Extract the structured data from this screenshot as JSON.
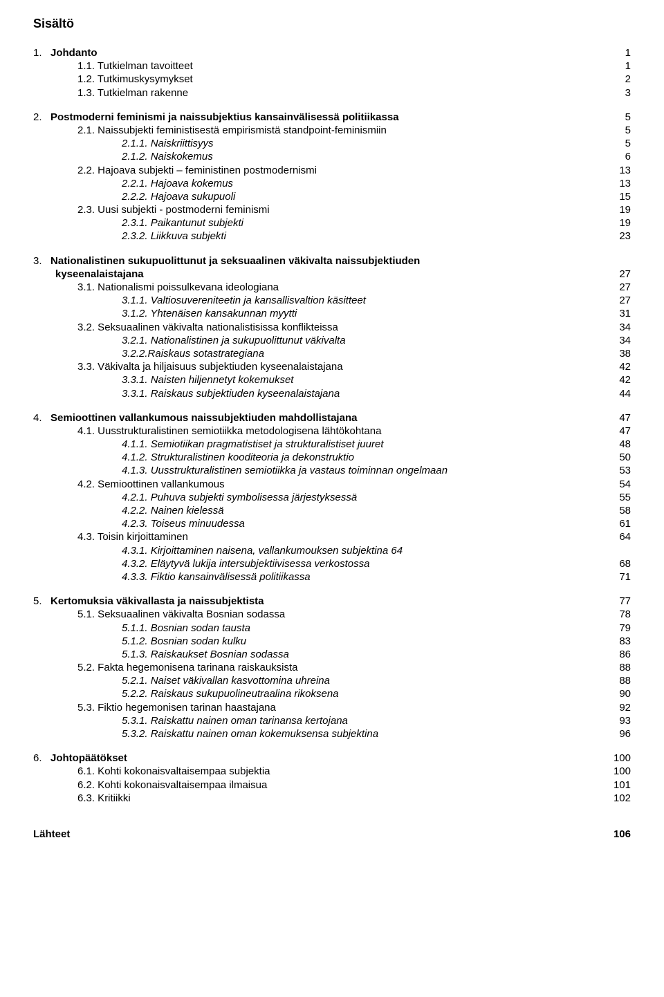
{
  "title": "Sisältö",
  "sources": {
    "label": "Lähteet",
    "page": "106"
  },
  "sections": [
    {
      "num": "1.",
      "title": "Johdanto",
      "page": "1",
      "children": [
        {
          "num": "1.1.",
          "title": "Tutkielman tavoitteet",
          "page": "1"
        },
        {
          "num": "1.2.",
          "title": "Tutkimuskysymykset",
          "page": "2"
        },
        {
          "num": "1.3.",
          "title": "Tutkielman rakenne",
          "page": "3"
        }
      ]
    },
    {
      "num": "2.",
      "title": "Postmoderni feminismi ja naissubjektius kansainvälisessä politiikassa",
      "page": "5",
      "children": [
        {
          "num": "2.1.",
          "title": "Naissubjekti feministisestä empirismistä standpoint-feminismiin",
          "page": "5",
          "children": [
            {
              "num": "2.1.1.",
              "title": "Naiskriittisyys",
              "page": "5",
              "italic": true
            },
            {
              "num": "2.1.2.",
              "title": "Naiskokemus",
              "page": "6",
              "italic": true
            }
          ]
        },
        {
          "num": "2.2.",
          "title": "Hajoava subjekti – feministinen postmodernismi",
          "page": "13",
          "children": [
            {
              "num": "2.2.1.",
              "title": "Hajoava kokemus",
              "page": "13",
              "italic": true
            },
            {
              "num": "2.2.2.",
              "title": "Hajoava sukupuoli",
              "page": "15",
              "italic": true
            }
          ]
        },
        {
          "num": "2.3.",
          "title": "Uusi subjekti - postmoderni feminismi",
          "page": "19",
          "children": [
            {
              "num": "2.3.1.",
              "title": "Paikantunut subjekti",
              "page": "19",
              "italic": true
            },
            {
              "num": "2.3.2.",
              "title": "Liikkuva subjekti",
              "page": "23",
              "italic": true
            }
          ]
        }
      ]
    },
    {
      "num": "3.",
      "title": "Nationalistinen sukupuolittunut ja seksuaalinen väkivalta naissubjektiuden kyseenalaistajana",
      "page": "27",
      "children": [
        {
          "num": "3.1.",
          "title": "Nationalismi poissulkevana ideologiana",
          "page": "27",
          "children": [
            {
              "num": "3.1.1.",
              "title": "Valtiosuvereniteetin ja kansallisvaltion käsitteet",
              "page": "27",
              "italic": true
            },
            {
              "num": "3.1.2.",
              "title": "Yhtenäisen kansakunnan myytti",
              "page": "31",
              "italic": true
            }
          ]
        },
        {
          "num": "3.2.",
          "title": "Seksuaalinen väkivalta nationalistisissa konflikteissa",
          "page": "34",
          "children": [
            {
              "num": "3.2.1.",
              "title": "Nationalistinen ja sukupuolittunut väkivalta",
              "page": "34",
              "italic": true
            },
            {
              "num": "3.2.2.",
              "title": "Raiskaus sotastrategiana",
              "page": "38",
              "italic": true,
              "nospace": true
            }
          ]
        },
        {
          "num": "3.3.",
          "title": "Väkivalta ja hiljaisuus subjektiuden kyseenalaistajana",
          "page": "42",
          "children": [
            {
              "num": "3.3.1.",
              "title": "Naisten hiljennetyt kokemukset",
              "page": "42",
              "italic": true
            },
            {
              "num": "3.3.1.",
              "title": "Raiskaus subjektiuden kyseenalaistajana",
              "page": "44",
              "italic": true
            }
          ]
        }
      ]
    },
    {
      "num": "4.",
      "title": "Semioottinen vallankumous naissubjektiuden mahdollistajana",
      "page": "47",
      "children": [
        {
          "num": "4.1.",
          "title": "Uusstrukturalistinen semiotiikka metodologisena lähtökohtana",
          "page": "47",
          "children": [
            {
              "num": "4.1.1.",
              "title": "Semiotiikan pragmatistiset ja strukturalistiset juuret",
              "page": "48",
              "italic": true
            },
            {
              "num": "4.1.2.",
              "title": "Strukturalistinen kooditeoria ja dekonstruktio",
              "page": "50",
              "italic": true
            },
            {
              "num": "4.1.3.",
              "title": "Uusstrukturalistinen semiotiikka ja vastaus toiminnan ongelmaan",
              "page": "53",
              "italic": true
            }
          ]
        },
        {
          "num": "4.2.",
          "title": "Semioottinen vallankumous",
          "page": "54",
          "children": [
            {
              "num": "4.2.1.",
              "title": "Puhuva subjekti symbolisessa järjestyksessä",
              "page": "55",
              "italic": true
            },
            {
              "num": "4.2.2.",
              "title": "Nainen kielessä",
              "page": "58",
              "italic": true
            },
            {
              "num": "4.2.3.",
              "title": "Toiseus minuudessa",
              "page": "61",
              "italic": true
            }
          ]
        },
        {
          "num": "4.3.",
          "title": "Toisin kirjoittaminen",
          "page": "64",
          "children": [
            {
              "num": "4.3.1.",
              "title": "Kirjoittaminen naisena, vallankumouksen subjektina",
              "page": "64",
              "italic": true,
              "inline_page": true
            },
            {
              "num": "4.3.2.",
              "title": "Eläytyvä lukija intersubjektiivisessa verkostossa",
              "page": "68",
              "italic": true
            },
            {
              "num": "4.3.3.",
              "title": "Fiktio kansainvälisessä politiikassa",
              "page": "71",
              "italic": true
            }
          ]
        }
      ]
    },
    {
      "num": "5.",
      "title": "Kertomuksia väkivallasta ja naissubjektista",
      "page": "77",
      "children": [
        {
          "num": "5.1.",
          "title": "Seksuaalinen väkivalta Bosnian sodassa",
          "page": "78",
          "children": [
            {
              "num": "5.1.1.",
              "title": "Bosnian sodan tausta",
              "page": "79",
              "italic": true
            },
            {
              "num": "5.1.2.",
              "title": "Bosnian sodan kulku",
              "page": "83",
              "italic": true
            },
            {
              "num": "5.1.3.",
              "title": "Raiskaukset Bosnian sodassa",
              "page": "86",
              "italic": true
            }
          ]
        },
        {
          "num": "5.2.",
          "title": "Fakta hegemonisena tarinana raiskauksista",
          "page": "88",
          "children": [
            {
              "num": "5.2.1.",
              "title": "Naiset väkivallan kasvottomina uhreina",
              "page": "88",
              "italic": true
            },
            {
              "num": "5.2.2.",
              "title": "Raiskaus sukupuolineutraalina rikoksena",
              "page": "90",
              "italic": true
            }
          ]
        },
        {
          "num": "5.3.",
          "title": "Fiktio hegemonisen tarinan haastajana",
          "page": "92",
          "children": [
            {
              "num": "5.3.1.",
              "title": "Raiskattu nainen oman tarinansa kertojana",
              "page": "93",
              "italic": true
            },
            {
              "num": "5.3.2.",
              "title": "Raiskattu nainen oman kokemuksensa subjektina",
              "page": "96",
              "italic": true
            }
          ]
        }
      ]
    },
    {
      "num": "6.",
      "title": "Johtopäätökset",
      "page": "100",
      "children": [
        {
          "num": "6.1.",
          "title": "Kohti kokonaisvaltaisempaa subjektia",
          "page": "100"
        },
        {
          "num": "6.2.",
          "title": "Kohti kokonaisvaltaisempaa ilmaisua",
          "page": "101"
        },
        {
          "num": "6.3.",
          "title": "Kritiikki",
          "page": "102"
        }
      ]
    }
  ]
}
